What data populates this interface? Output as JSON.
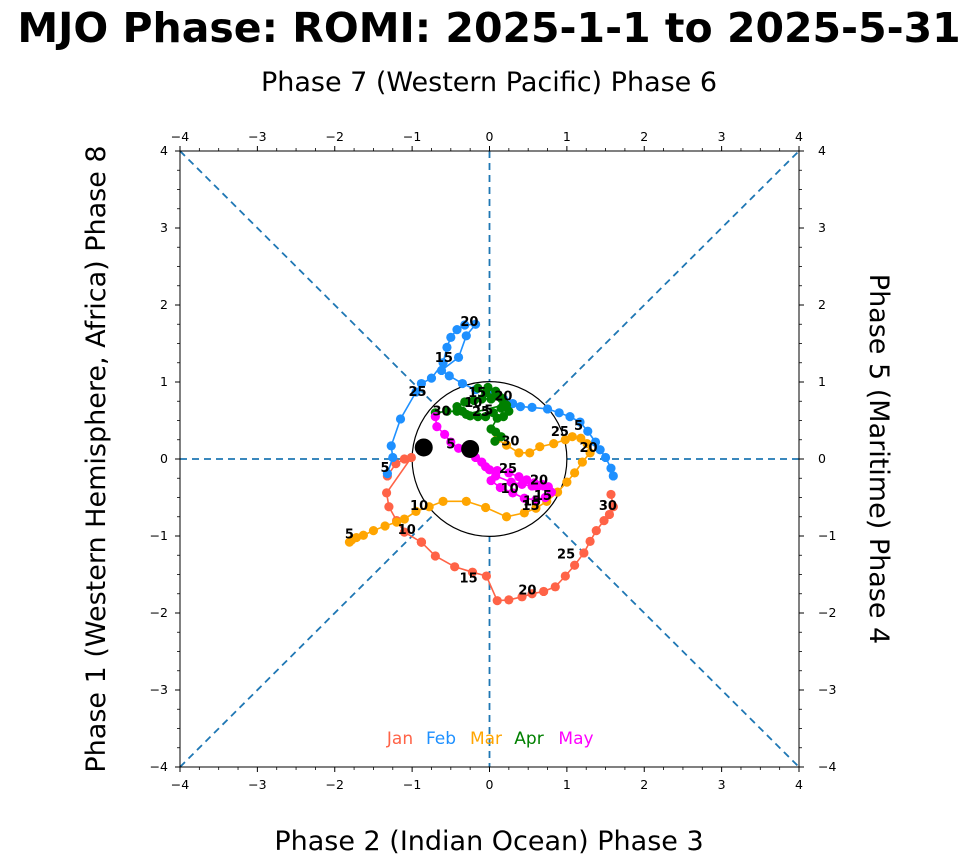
{
  "chart_data": {
    "type": "scatter",
    "title": "MJO Phase: ROMI: 2025-1-1 to 2025-5-31",
    "top_label": "Phase 7 (Western Pacific) Phase 6",
    "bottom_label": "Phase 2 (Indian Ocean) Phase 3",
    "left_label": "Phase 1 (Western Hemisphere, Africa) Phase 8",
    "right_label": "Phase 5 (Maritime) Phase 4",
    "xlim": [
      -4,
      4
    ],
    "ylim": [
      -4,
      4
    ],
    "ticks": [
      -4,
      -3,
      -2,
      -1,
      0,
      1,
      2,
      3,
      4
    ],
    "tick_labels": [
      "−4",
      "−3",
      "−2",
      "−1",
      "0",
      "1",
      "2",
      "3",
      "4"
    ],
    "reference_circle_radius": 1,
    "colors": {
      "guide": "#1f77b4",
      "circle": "#000000",
      "endpoint": "#000000"
    },
    "series": [
      {
        "name": "Jan",
        "color": "#ff6347",
        "points": [
          [
            -1.32,
            -0.22
          ],
          [
            -1.21,
            -0.06
          ],
          [
            -1.1,
            0.0
          ],
          [
            -1.01,
            0.02
          ],
          [
            -1.33,
            -0.44
          ],
          [
            -1.3,
            -0.62
          ],
          [
            -1.2,
            -0.8
          ],
          [
            -1.1,
            -0.95
          ],
          [
            -0.88,
            -1.08
          ],
          [
            -0.88,
            -1.08
          ],
          [
            -0.88,
            -1.08
          ],
          [
            -0.7,
            -1.26
          ],
          [
            -0.45,
            -1.4
          ],
          [
            -0.22,
            -1.47
          ],
          [
            -0.04,
            -1.52
          ],
          [
            0.1,
            -1.84
          ],
          [
            0.25,
            -1.83
          ],
          [
            0.42,
            -1.79
          ],
          [
            0.55,
            -1.75
          ],
          [
            0.7,
            -1.72
          ],
          [
            0.85,
            -1.66
          ],
          [
            0.98,
            -1.52
          ],
          [
            1.1,
            -1.38
          ],
          [
            1.22,
            -1.22
          ],
          [
            1.3,
            -1.07
          ],
          [
            1.38,
            -0.93
          ],
          [
            1.48,
            -0.8
          ],
          [
            1.55,
            -0.72
          ],
          [
            1.6,
            -0.62
          ],
          [
            1.57,
            -0.46
          ]
        ],
        "labels": [
          {
            "day": "5",
            "x": -1.35,
            "y": -0.12
          },
          {
            "day": "10",
            "x": -1.07,
            "y": -0.92
          },
          {
            "day": "15",
            "x": -0.27,
            "y": -1.55
          },
          {
            "day": "20",
            "x": 0.49,
            "y": -1.71
          },
          {
            "day": "25",
            "x": 0.99,
            "y": -1.24
          },
          {
            "day": "30",
            "x": 1.53,
            "y": -0.61
          }
        ]
      },
      {
        "name": "Feb",
        "color": "#1e90ff",
        "points": [
          [
            -1.32,
            -0.19
          ],
          [
            -1.25,
            0.02
          ],
          [
            -1.27,
            0.17
          ],
          [
            -1.15,
            0.52
          ],
          [
            -0.95,
            0.87
          ],
          [
            -0.88,
            0.98
          ],
          [
            -0.75,
            1.05
          ],
          [
            -0.6,
            1.25
          ],
          [
            -0.55,
            1.45
          ],
          [
            -0.5,
            1.58
          ],
          [
            -0.42,
            1.68
          ],
          [
            -0.32,
            1.74
          ],
          [
            -0.18,
            1.75
          ],
          [
            -0.3,
            1.6
          ],
          [
            -0.4,
            1.32
          ],
          [
            -0.62,
            1.15
          ],
          [
            -0.52,
            1.08
          ],
          [
            -0.35,
            0.98
          ],
          [
            -0.18,
            0.9
          ],
          [
            0.05,
            0.84
          ],
          [
            0.18,
            0.78
          ],
          [
            0.3,
            0.72
          ],
          [
            0.4,
            0.68
          ],
          [
            0.55,
            0.67
          ],
          [
            0.75,
            0.65
          ],
          [
            0.9,
            0.6
          ],
          [
            1.04,
            0.55
          ],
          [
            1.17,
            0.48
          ],
          [
            1.27,
            0.36
          ],
          [
            1.37,
            0.22
          ],
          [
            1.43,
            0.12
          ],
          [
            1.5,
            0.02
          ],
          [
            1.57,
            -0.12
          ],
          [
            1.6,
            -0.22
          ]
        ],
        "labels": [
          {
            "day": "25",
            "x": -0.93,
            "y": 0.87
          },
          {
            "day": "15",
            "x": -0.59,
            "y": 1.31
          },
          {
            "day": "20",
            "x": -0.26,
            "y": 1.78
          },
          {
            "day": "5",
            "x": 1.15,
            "y": 0.43
          }
        ]
      },
      {
        "name": "Mar",
        "color": "#ffa500",
        "points": [
          [
            -1.81,
            -1.08
          ],
          [
            -1.78,
            -1.05
          ],
          [
            -1.72,
            -1.02
          ],
          [
            -1.63,
            -0.99
          ],
          [
            -1.5,
            -0.93
          ],
          [
            -1.35,
            -0.87
          ],
          [
            -1.2,
            -0.82
          ],
          [
            -1.1,
            -0.78
          ],
          [
            -0.95,
            -0.68
          ],
          [
            -0.78,
            -0.62
          ],
          [
            -0.6,
            -0.55
          ],
          [
            -0.3,
            -0.55
          ],
          [
            -0.05,
            -0.63
          ],
          [
            0.22,
            -0.75
          ],
          [
            0.45,
            -0.7
          ],
          [
            0.6,
            -0.64
          ],
          [
            0.74,
            -0.55
          ],
          [
            0.88,
            -0.43
          ],
          [
            1.0,
            -0.3
          ],
          [
            1.1,
            -0.18
          ],
          [
            1.2,
            -0.04
          ],
          [
            1.3,
            0.08
          ],
          [
            1.26,
            0.2
          ],
          [
            1.18,
            0.27
          ],
          [
            1.07,
            0.29
          ],
          [
            0.98,
            0.25
          ],
          [
            0.83,
            0.2
          ],
          [
            0.65,
            0.16
          ],
          [
            0.52,
            0.08
          ],
          [
            0.38,
            0.08
          ],
          [
            0.22,
            0.18
          ],
          [
            0.1,
            0.26
          ]
        ],
        "labels": [
          {
            "day": "5",
            "x": -1.81,
            "y": -0.98
          },
          {
            "day": "10",
            "x": -0.91,
            "y": -0.61
          },
          {
            "day": "15",
            "x": 0.53,
            "y": -0.61
          },
          {
            "day": "20",
            "x": 1.28,
            "y": 0.14
          },
          {
            "day": "25",
            "x": 0.91,
            "y": 0.35
          },
          {
            "day": "30",
            "x": 0.27,
            "y": 0.23
          }
        ]
      },
      {
        "name": "Apr",
        "color": "#008000",
        "points": [
          [
            0.07,
            0.23
          ],
          [
            0.15,
            0.29
          ],
          [
            0.08,
            0.35
          ],
          [
            0.02,
            0.39
          ],
          [
            0.1,
            0.53
          ],
          [
            0.18,
            0.55
          ],
          [
            0.25,
            0.62
          ],
          [
            0.22,
            0.7
          ],
          [
            0.16,
            0.78
          ],
          [
            0.1,
            0.82
          ],
          [
            -0.05,
            0.86
          ],
          [
            -0.15,
            0.92
          ],
          [
            -0.02,
            0.93
          ],
          [
            0.08,
            0.88
          ],
          [
            0.14,
            0.8
          ],
          [
            0.02,
            0.78
          ],
          [
            -0.1,
            0.78
          ],
          [
            -0.2,
            0.76
          ],
          [
            -0.32,
            0.74
          ],
          [
            -0.42,
            0.68
          ],
          [
            -0.35,
            0.62
          ],
          [
            -0.25,
            0.56
          ],
          [
            -0.15,
            0.55
          ],
          [
            -0.05,
            0.55
          ],
          [
            0.05,
            0.6
          ],
          [
            0.15,
            0.66
          ],
          [
            0.18,
            0.7
          ],
          [
            -0.3,
            0.58
          ],
          [
            -0.42,
            0.62
          ],
          [
            -0.55,
            0.62
          ],
          [
            -0.7,
            0.6
          ]
        ],
        "labels": [
          {
            "day": "15",
            "x": -0.16,
            "y": 0.86
          },
          {
            "day": "20",
            "x": 0.18,
            "y": 0.81
          },
          {
            "day": "10",
            "x": -0.21,
            "y": 0.73
          },
          {
            "day": "25",
            "x": -0.11,
            "y": 0.61
          },
          {
            "day": "5",
            "x": -0.01,
            "y": 0.63
          },
          {
            "day": "30",
            "x": -0.62,
            "y": 0.62
          }
        ]
      },
      {
        "name": "May",
        "color": "#ff00ff",
        "points": [
          [
            -0.7,
            0.55
          ],
          [
            -0.68,
            0.42
          ],
          [
            -0.58,
            0.32
          ],
          [
            -0.5,
            0.22
          ],
          [
            -0.4,
            0.14
          ],
          [
            -0.28,
            0.08
          ],
          [
            -0.18,
            0.02
          ],
          [
            -0.1,
            -0.04
          ],
          [
            -0.05,
            -0.1
          ],
          [
            0.0,
            -0.14
          ],
          [
            0.1,
            -0.15
          ],
          [
            0.25,
            -0.18
          ],
          [
            0.38,
            -0.23
          ],
          [
            0.48,
            -0.27
          ],
          [
            0.58,
            -0.31
          ],
          [
            0.68,
            -0.33
          ],
          [
            0.76,
            -0.36
          ],
          [
            0.8,
            -0.43
          ],
          [
            0.72,
            -0.5
          ],
          [
            0.6,
            -0.53
          ],
          [
            0.45,
            -0.51
          ],
          [
            0.3,
            -0.44
          ],
          [
            0.14,
            -0.37
          ],
          [
            0.02,
            -0.28
          ],
          [
            0.08,
            -0.22
          ],
          [
            0.28,
            -0.3
          ],
          [
            0.42,
            -0.33
          ],
          [
            0.55,
            -0.35
          ],
          [
            0.62,
            -0.36
          ],
          [
            0.7,
            -0.35
          ],
          [
            0.76,
            -0.38
          ]
        ],
        "labels": [
          {
            "day": "5",
            "x": -0.5,
            "y": 0.19
          },
          {
            "day": "25",
            "x": 0.24,
            "y": -0.13
          },
          {
            "day": "20",
            "x": 0.64,
            "y": -0.28
          },
          {
            "day": "10",
            "x": 0.26,
            "y": -0.39
          },
          {
            "day": "15",
            "x": 0.69,
            "y": -0.48
          },
          {
            "day": "15",
            "x": 0.55,
            "y": -0.55
          }
        ]
      }
    ],
    "endpoints": [
      [
        -0.85,
        0.15
      ],
      [
        -0.25,
        0.13
      ]
    ],
    "legend": {
      "placement": "bottom-center",
      "entries": [
        {
          "label": "Jan",
          "color": "#ff6347"
        },
        {
          "label": "Feb",
          "color": "#1e90ff"
        },
        {
          "label": "Mar",
          "color": "#ffa500"
        },
        {
          "label": "Apr",
          "color": "#008000"
        },
        {
          "label": "May",
          "color": "#ff00ff"
        }
      ]
    }
  }
}
